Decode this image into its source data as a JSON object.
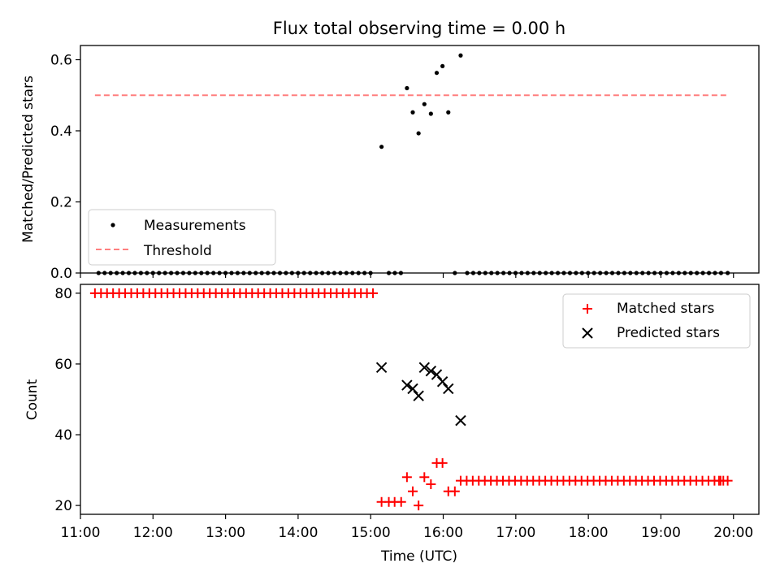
{
  "title": "Flux total observing time = 0.00 h",
  "chart_data": [
    {
      "type": "scatter",
      "ylabel": "Matched/Predicted stars",
      "xlim": [
        11.0,
        20.35
      ],
      "ylim": [
        0.0,
        0.64
      ],
      "yticks": [
        0.0,
        0.2,
        0.4,
        0.6
      ],
      "ytick_labels": [
        "0.0",
        "0.2",
        "0.4",
        "0.6"
      ],
      "legend_position": "lower-left",
      "series": [
        {
          "name": "Measurements",
          "color": "#000000",
          "marker": "dot",
          "points": [
            [
              15.15,
              0.355
            ],
            [
              15.5,
              0.52
            ],
            [
              15.58,
              0.452
            ],
            [
              15.66,
              0.393
            ],
            [
              15.74,
              0.475
            ],
            [
              15.83,
              0.448
            ],
            [
              15.91,
              0.563
            ],
            [
              15.99,
              0.582
            ],
            [
              16.07,
              0.452
            ],
            [
              16.24,
              0.612
            ]
          ],
          "zero_x_ranges": [
            [
              11.25,
              15.08,
              0.0833
            ],
            [
              15.25,
              15.42,
              0.0833
            ],
            [
              16.16,
              16.16,
              0.0833
            ],
            [
              16.33,
              19.83,
              0.0833
            ],
            [
              19.92,
              19.92,
              0.0833
            ]
          ]
        },
        {
          "name": "Threshold",
          "color": "#ff7f7f",
          "style": "dashed",
          "x": [
            11.2,
            19.9
          ],
          "y": [
            0.5,
            0.5
          ]
        }
      ]
    },
    {
      "type": "scatter",
      "xlabel": "Time (UTC)",
      "ylabel": "Count",
      "xlim": [
        11.0,
        20.35
      ],
      "ylim": [
        17.5,
        82.5
      ],
      "xticks": [
        11,
        12,
        13,
        14,
        15,
        16,
        17,
        18,
        19,
        20
      ],
      "xtick_labels": [
        "11:00",
        "12:00",
        "13:00",
        "14:00",
        "15:00",
        "16:00",
        "17:00",
        "18:00",
        "19:00",
        "20:00"
      ],
      "yticks": [
        20,
        40,
        60,
        80
      ],
      "ytick_labels": [
        "20",
        "40",
        "60",
        "80"
      ],
      "legend_position": "upper-right",
      "series": [
        {
          "name": "Matched stars",
          "color": "#ff0000",
          "marker": "plus",
          "points": [
            [
              15.15,
              21
            ],
            [
              15.25,
              21
            ],
            [
              15.33,
              21
            ],
            [
              15.42,
              21
            ],
            [
              15.5,
              28
            ],
            [
              15.58,
              24
            ],
            [
              15.66,
              20
            ],
            [
              15.74,
              28
            ],
            [
              15.83,
              26
            ],
            [
              15.91,
              32
            ],
            [
              15.99,
              32
            ],
            [
              16.07,
              24
            ],
            [
              16.16,
              24
            ]
          ],
          "const_ranges": [
            [
              11.2,
              15.08,
              0.0833,
              80
            ],
            [
              16.24,
              19.83,
              0.0833,
              27
            ],
            [
              19.8,
              19.92,
              0.06,
              27
            ]
          ]
        },
        {
          "name": "Predicted stars",
          "color": "#000000",
          "marker": "x",
          "points": [
            [
              15.15,
              59
            ],
            [
              15.5,
              54
            ],
            [
              15.58,
              53
            ],
            [
              15.66,
              51
            ],
            [
              15.74,
              59
            ],
            [
              15.83,
              58
            ],
            [
              15.91,
              57
            ],
            [
              15.99,
              55
            ],
            [
              16.07,
              53
            ],
            [
              16.24,
              44
            ]
          ]
        }
      ]
    }
  ]
}
